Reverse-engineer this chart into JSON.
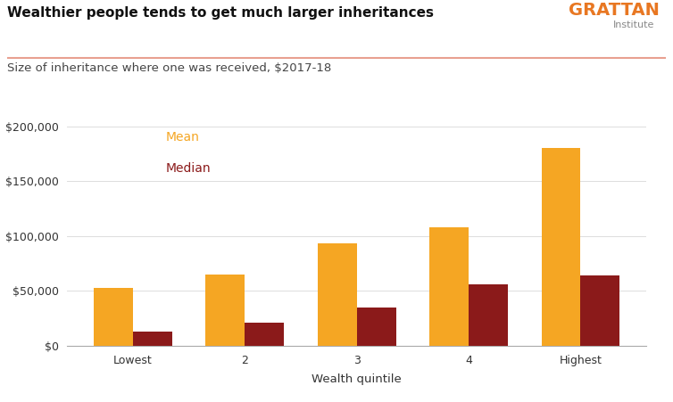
{
  "title": "Wealthier people tends to get much larger inheritances",
  "subtitle": "Size of inheritance where one was received, $2017-18",
  "xlabel": "Wealth quintile",
  "categories": [
    "Lowest",
    "2",
    "3",
    "4",
    "Highest"
  ],
  "mean_values": [
    53000,
    65000,
    93000,
    108000,
    180000
  ],
  "median_values": [
    13000,
    21000,
    35000,
    56000,
    64000
  ],
  "mean_color": "#F5A623",
  "median_color": "#8B1A1A",
  "ylim": [
    0,
    220000
  ],
  "yticks": [
    0,
    50000,
    100000,
    150000,
    200000
  ],
  "ytick_labels": [
    "$0",
    "$50,000",
    "$100,000",
    "$150,000",
    "$200,000"
  ],
  "bar_width": 0.35,
  "background_color": "#FFFFFF",
  "grattan_orange": "#E8A090",
  "grattan_logo_orange": "#E87722",
  "grattan_text": "#333333",
  "grattan_institute_color": "#888888",
  "legend_mean_label": "Mean",
  "legend_median_label": "Median",
  "title_fontsize": 11,
  "subtitle_fontsize": 9.5,
  "axis_fontsize": 9.5,
  "tick_fontsize": 9,
  "legend_fontsize": 10
}
